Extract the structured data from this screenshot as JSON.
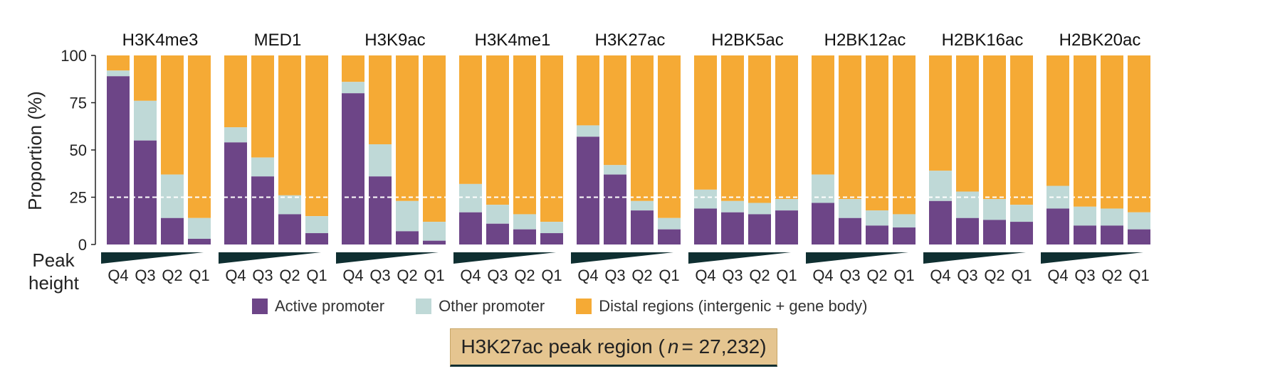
{
  "chart_data": {
    "type": "bar",
    "stacked": true,
    "ylabel": "Proportion (%)",
    "ylim": [
      0,
      100
    ],
    "yticks": [
      "0",
      "25",
      "50",
      "75",
      "100"
    ],
    "reference_line": 25,
    "x_axis_label": [
      "Peak",
      "height"
    ],
    "quartiles": [
      "Q4",
      "Q3",
      "Q2",
      "Q1"
    ],
    "series": [
      {
        "name": "Active promoter",
        "color": "#6d4587"
      },
      {
        "name": "Other promoter",
        "color": "#bfd9d7"
      },
      {
        "name": "Distal regions (intergenic + gene body)",
        "color": "#f5aa35"
      }
    ],
    "panels": [
      {
        "title": "H3K4me3",
        "active": [
          89,
          55,
          14,
          3
        ],
        "other": [
          3,
          21,
          23,
          11
        ]
      },
      {
        "title": "MED1",
        "active": [
          54,
          36,
          16,
          6
        ],
        "other": [
          8,
          10,
          10,
          9
        ]
      },
      {
        "title": "H3K9ac",
        "active": [
          80,
          36,
          7,
          2
        ],
        "other": [
          6,
          17,
          16,
          10
        ]
      },
      {
        "title": "H3K4me1",
        "active": [
          17,
          11,
          8,
          6
        ],
        "other": [
          15,
          10,
          8,
          6
        ]
      },
      {
        "title": "H3K27ac",
        "active": [
          57,
          37,
          18,
          8
        ],
        "other": [
          6,
          5,
          5,
          6
        ]
      },
      {
        "title": "H2BK5ac",
        "active": [
          19,
          17,
          16,
          18
        ],
        "other": [
          10,
          6,
          6,
          6
        ]
      },
      {
        "title": "H2BK12ac",
        "active": [
          22,
          14,
          10,
          9
        ],
        "other": [
          15,
          10,
          8,
          7
        ]
      },
      {
        "title": "H2BK16ac",
        "active": [
          23,
          14,
          13,
          12
        ],
        "other": [
          16,
          14,
          11,
          9
        ]
      },
      {
        "title": "H2BK20ac",
        "active": [
          19,
          10,
          10,
          8
        ],
        "other": [
          12,
          10,
          9,
          9
        ]
      }
    ],
    "footer": {
      "prefix": "H3K27ac peak region (",
      "n_label": "n",
      "suffix": " = 27,232)"
    }
  }
}
